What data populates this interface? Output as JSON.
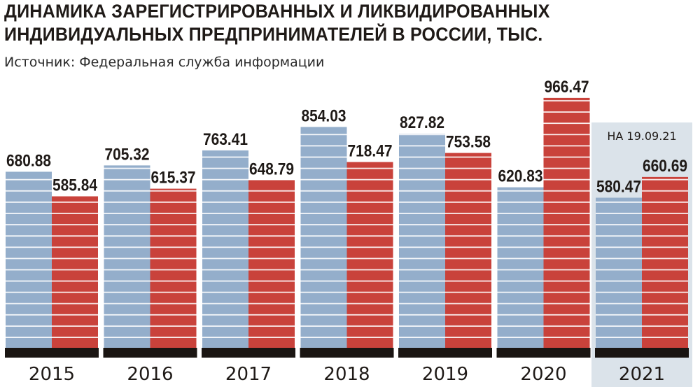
{
  "header": {
    "title": "ДИНАМИКА ЗАРЕГИСТРИРОВАННЫХ И ЛИКВИДИРОВАННЫХ ИНДИВИДУАЛЬНЫХ ПРЕДПРИНИМАТЕЛЕЙ В РОССИИ, ТЫС.",
    "source": "Источник: Федеральная служба информации"
  },
  "colors": {
    "registered": "#94aecb",
    "liquidated": "#c9423b",
    "highlight_band": "#dbe3ea",
    "axis": "#1a1512"
  },
  "chart_data": {
    "type": "bar",
    "title": "ДИНАМИКА ЗАРЕГИСТРИРОВАННЫХ И ЛИКВИДИРОВАННЫХ ИНДИВИДУАЛЬНЫХ ПРЕДПРИНИМАТЕЛЕЙ В РОССИИ, ТЫС.",
    "xlabel": "",
    "ylabel": "",
    "categories": [
      "2015",
      "2016",
      "2017",
      "2018",
      "2019",
      "2020",
      "2021"
    ],
    "series": [
      {
        "values": [
          680.88,
          705.32,
          763.41,
          854.03,
          827.82,
          620.83,
          580.47
        ]
      },
      {
        "values": [
          585.84,
          615.37,
          648.79,
          718.47,
          753.58,
          966.47,
          660.69
        ]
      }
    ],
    "value_labels": {
      "registered": [
        "680.88",
        "705.32",
        "763.41",
        "854.03",
        "827.82",
        "620.83",
        "580.47"
      ],
      "liquidated": [
        "585.84",
        "615.37",
        "648.79",
        "718.47",
        "753.58",
        "966.47",
        "660.69"
      ]
    },
    "annotations": [
      {
        "category": "2021",
        "text": "НА 19.09.21"
      }
    ],
    "highlight_category": "2021",
    "ylim": [
      0,
      1000
    ],
    "grid": false,
    "legend": "none"
  }
}
